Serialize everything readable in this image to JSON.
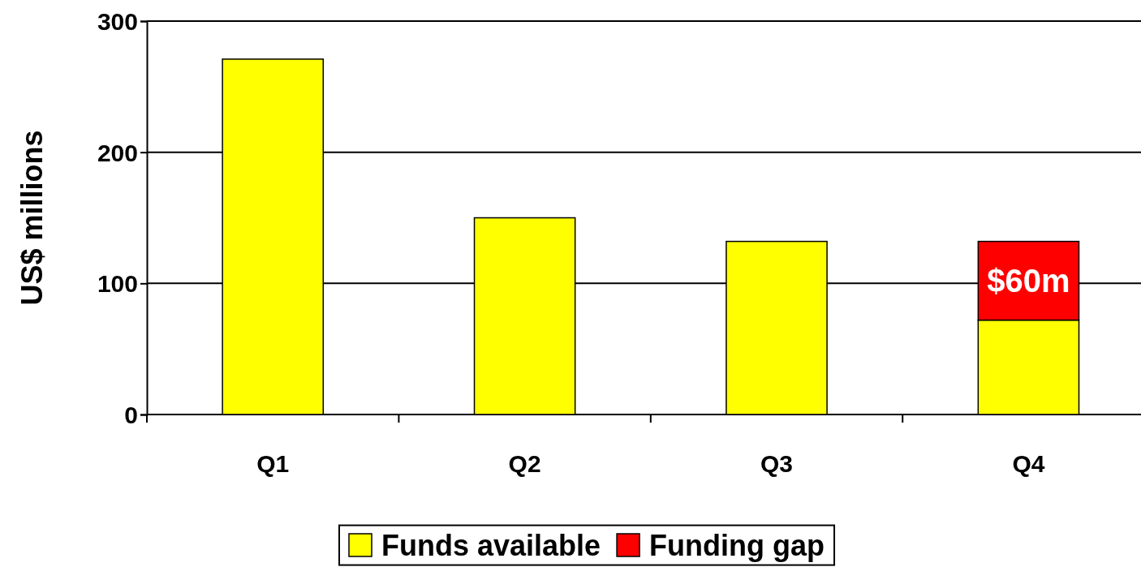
{
  "chart_data": {
    "type": "bar",
    "ylabel": "US$ millions",
    "categories": [
      "Q1",
      "Q2",
      "Q3",
      "Q4"
    ],
    "stacked": true,
    "series": [
      {
        "name": "Funds available",
        "color": "#ffff00",
        "values": [
          271,
          150,
          132,
          72
        ]
      },
      {
        "name": "Funding gap",
        "color": "#ff0000",
        "values": [
          null,
          null,
          null,
          60
        ],
        "value_labels": [
          null,
          null,
          null,
          "$60m"
        ]
      }
    ],
    "ylim": [
      0,
      300
    ],
    "yticks": [
      0,
      100,
      200,
      300
    ],
    "grid": "y",
    "legend": "bottom"
  }
}
